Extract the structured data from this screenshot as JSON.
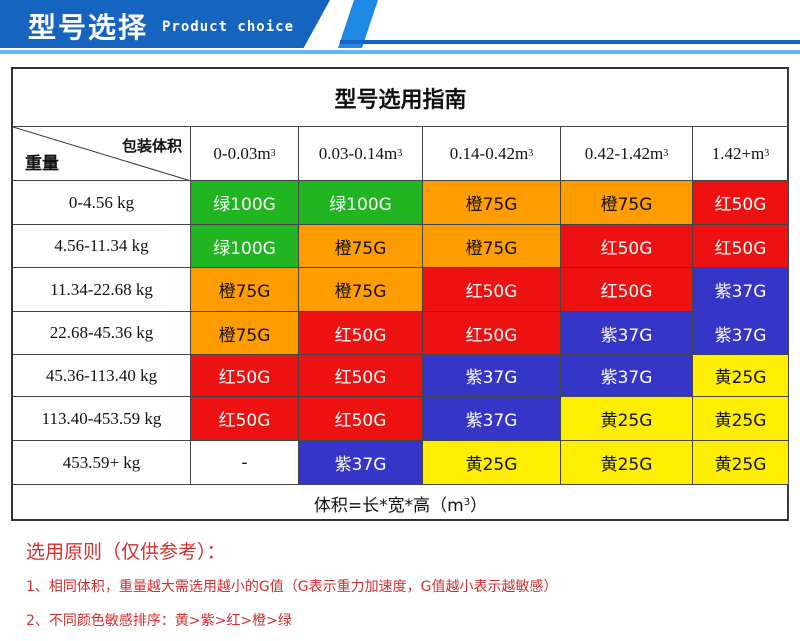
{
  "banner": {
    "title": "型号选择",
    "subtitle": "Product choice"
  },
  "table": {
    "title": "型号选用指南",
    "corner_top": "包装体积",
    "corner_bottom": "重量",
    "columns": [
      {
        "base": "0-0.03m",
        "sup": "3"
      },
      {
        "base": "0.03-0.14m",
        "sup": "3"
      },
      {
        "base": "0.14-0.42m",
        "sup": "3"
      },
      {
        "base": "0.42-1.42m",
        "sup": "3"
      },
      {
        "base": "1.42+m",
        "sup": "3"
      }
    ],
    "rows": [
      {
        "label": "0-4.56 kg",
        "cells": [
          "绿100G",
          "绿100G",
          "橙75G",
          "橙75G",
          "红50G"
        ]
      },
      {
        "label": "4.56-11.34 kg",
        "cells": [
          "绿100G",
          "橙75G",
          "橙75G",
          "红50G",
          "红50G"
        ]
      },
      {
        "label": "11.34-22.68 kg",
        "cells": [
          "橙75G",
          "橙75G",
          "红50G",
          "红50G",
          "紫37G"
        ]
      },
      {
        "label": "22.68-45.36 kg",
        "cells": [
          "橙75G",
          "红50G",
          "红50G",
          "紫37G",
          "紫37G"
        ]
      },
      {
        "label": "45.36-113.40 kg",
        "cells": [
          "红50G",
          "红50G",
          "紫37G",
          "紫37G",
          "黄25G"
        ]
      },
      {
        "label": "113.40-453.59 kg",
        "cells": [
          "红50G",
          "红50G",
          "紫37G",
          "黄25G",
          "黄25G"
        ]
      },
      {
        "label": "453.59+ kg",
        "cells": [
          "-",
          "紫37G",
          "黄25G",
          "黄25G",
          "黄25G"
        ]
      }
    ],
    "footer": {
      "base": "体积=长*宽*高（m",
      "sup": "3",
      "end": "）"
    }
  },
  "colors": {
    "绿": {
      "bg": "#22b522",
      "fg": "#ffffff"
    },
    "橙": {
      "bg": "#ff9c00",
      "fg": "#111111"
    },
    "红": {
      "bg": "#ee1111",
      "fg": "#ffffff"
    },
    "紫": {
      "bg": "#3535c8",
      "fg": "#ffffff"
    },
    "黄": {
      "bg": "#ffee00",
      "fg": "#111111"
    },
    "-": {
      "bg": "#ffffff",
      "fg": "#111111"
    }
  },
  "notes": {
    "title": "选用原则（仅供参考）：",
    "items": [
      "1、相同体积，重量越大需选用越小的G值（G表示重力加速度，G值越小表示越敏感）",
      "2、不同颜色敏感排序：黄>紫>红>橙>绿"
    ]
  }
}
